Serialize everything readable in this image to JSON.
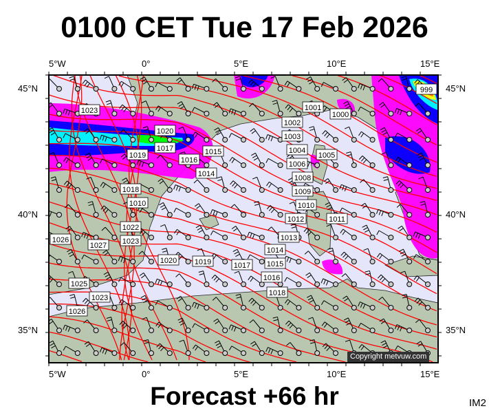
{
  "title": "0100 CET Tue 17 Feb 2026",
  "forecast": "Forecast +66 hr",
  "product_code": "IM2",
  "copyright": "Copyright metvuw.com",
  "axes": {
    "longitude_labels": [
      "5°W",
      "0°",
      "5°E",
      "10°E",
      "15°E"
    ],
    "latitude_labels": [
      "45°N",
      "40°N",
      "35°N"
    ]
  },
  "colors": {
    "sea": "#e6e6fa",
    "land": "#b9c7b0",
    "isobar": "#ff0000",
    "rain_light": "#ff00ff",
    "rain_mid": "#0000ff",
    "rain_heavy": "#00ffff",
    "rain_max": "#00ff00"
  },
  "isobar_labels": [
    "1023",
    "1020",
    "1019",
    "1017",
    "1016",
    "1015",
    "1014",
    "1018",
    "1001",
    "1000",
    "1002",
    "1003",
    "1004",
    "1005",
    "1006",
    "1008",
    "1009",
    "1010",
    "1011",
    "1012",
    "1013",
    "1014",
    "1015",
    "1017",
    "1016",
    "1018",
    "1020",
    "1019",
    "1027",
    "1022",
    "1023",
    "1025",
    "1023",
    "1026",
    "1026",
    "1010",
    "999"
  ]
}
